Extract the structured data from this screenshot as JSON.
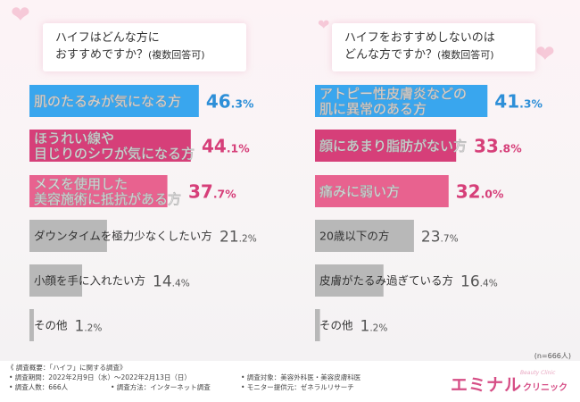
{
  "questions": {
    "left": {
      "line1": "ハイフはどんな方に",
      "line2": "おすすめですか？",
      "note": "(複数回答可)"
    },
    "right": {
      "line1": "ハイフをおすすめしないのは",
      "line2": "どんな方ですか？",
      "note": "(複数回答可)"
    }
  },
  "colors": {
    "blue": "#39a6ee",
    "pink": "#d63f79",
    "pink_light": "#e8628f",
    "gray": "#b8b8b8",
    "value_blue": "#2d8fd8",
    "value_pink": "#d63f79",
    "value_gray": "#555555"
  },
  "chart_data": [
    {
      "type": "bar",
      "bars": [
        {
          "lines": [
            "肌のたるみが気になる方"
          ],
          "value": 46.3,
          "int": "46",
          "dec": ".3",
          "pct": "%",
          "style": "blue"
        },
        {
          "lines": [
            "ほうれい線や",
            "目じりのシワが気になる方"
          ],
          "value": 44.1,
          "int": "44",
          "dec": ".1",
          "pct": "%",
          "style": "pink"
        },
        {
          "lines": [
            "メスを使用した",
            "美容施術に抵抗がある方"
          ],
          "value": 37.7,
          "int": "37",
          "dec": ".7",
          "pct": "%",
          "style": "pink_light"
        },
        {
          "lines": [
            "ダウンタイムを極力少なくしたい方"
          ],
          "value": 21.2,
          "int": "21",
          "dec": ".2",
          "pct": "%",
          "style": "gray"
        },
        {
          "lines": [
            "小顔を手に入れたい方"
          ],
          "value": 14.4,
          "int": "14",
          "dec": ".4",
          "pct": "%",
          "style": "gray"
        },
        {
          "lines": [
            "その他"
          ],
          "value": 1.2,
          "int": "1",
          "dec": ".2",
          "pct": "%",
          "style": "gray"
        }
      ]
    },
    {
      "type": "bar",
      "bars": [
        {
          "lines": [
            "アトピー性皮膚炎などの",
            "肌に異常のある方"
          ],
          "value": 41.3,
          "int": "41",
          "dec": ".3",
          "pct": "%",
          "style": "blue"
        },
        {
          "lines": [
            "顔にあまり脂肪がない方"
          ],
          "value": 33.8,
          "int": "33",
          "dec": ".8",
          "pct": "%",
          "style": "pink"
        },
        {
          "lines": [
            "痛みに弱い方"
          ],
          "value": 32.0,
          "int": "32",
          "dec": ".0",
          "pct": "%",
          "style": "pink_light"
        },
        {
          "lines": [
            "20歳以下の方"
          ],
          "value": 23.7,
          "int": "23",
          "dec": ".7",
          "pct": "%",
          "style": "gray"
        },
        {
          "lines": [
            "皮膚がたるみ過ぎている方"
          ],
          "value": 16.4,
          "int": "16",
          "dec": ".4",
          "pct": "%",
          "style": "gray"
        },
        {
          "lines": [
            "その他"
          ],
          "value": 1.2,
          "int": "1",
          "dec": ".2",
          "pct": "%",
          "style": "gray"
        }
      ]
    }
  ],
  "sample_size": "(n=666人)",
  "footer": {
    "heading": "《 調査概要：「ハイフ」に関する調査》",
    "period": "• 調査期間：2022年2月9日（水）〜2022年2月13日（日）",
    "count": "• 調査人数：666人",
    "method": "• 調査方法：インターネット調査",
    "target": "• 調査対象：美容外科医・美容皮膚科医",
    "provider": "• モニター提供元：ゼネラルリサーチ"
  },
  "logo": {
    "main": "エミナル",
    "sub": "クリニック",
    "tagline": "Beauty Clinic"
  }
}
